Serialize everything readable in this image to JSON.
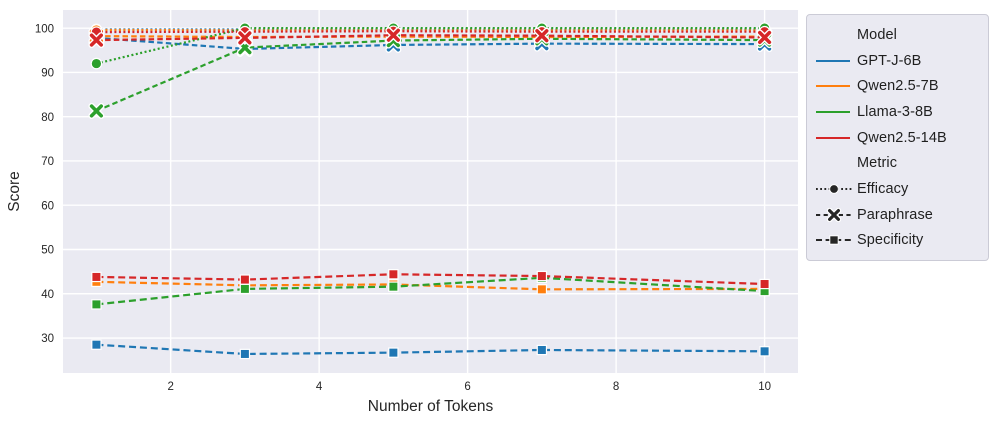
{
  "chart_data": {
    "type": "line",
    "title": "",
    "xlabel": "Number of Tokens",
    "ylabel": "Score",
    "x": [
      1,
      3,
      5,
      7,
      10
    ],
    "xticks": [
      2,
      4,
      6,
      8,
      10
    ],
    "yticks": [
      30,
      40,
      50,
      60,
      70,
      80,
      90,
      100
    ],
    "xlim": [
      0.55,
      10.45
    ],
    "ylim": [
      22.1,
      104.1
    ],
    "grid": true,
    "plot_bg": "#eaeaf2",
    "grid_color": "#ffffff",
    "legend_position": "outside-right",
    "legend": {
      "model_title": "Model",
      "metric_title": "Metric"
    },
    "models": [
      {
        "label": "GPT-J-6B",
        "color": "#1f77b4"
      },
      {
        "label": "Qwen2.5-7B",
        "color": "#ff7f0e"
      },
      {
        "label": "Llama-3-8B",
        "color": "#2ca02c"
      },
      {
        "label": "Qwen2.5-14B",
        "color": "#d62728"
      }
    ],
    "metrics": [
      {
        "label": "Efficacy",
        "marker": "circle",
        "dash": "dotted"
      },
      {
        "label": "Paraphrase",
        "marker": "x",
        "dash": "dashed"
      },
      {
        "label": "Specificity",
        "marker": "square",
        "dash": "dashed-long"
      }
    ],
    "series": [
      {
        "model": "GPT-J-6B",
        "metric": "Efficacy",
        "values": [
          99.7,
          99.7,
          99.7,
          99.7,
          99.7
        ]
      },
      {
        "model": "GPT-J-6B",
        "metric": "Paraphrase",
        "values": [
          97.8,
          95.3,
          96.2,
          96.5,
          96.4
        ]
      },
      {
        "model": "GPT-J-6B",
        "metric": "Specificity",
        "values": [
          28.5,
          26.4,
          26.7,
          27.3,
          27.0
        ]
      },
      {
        "model": "Qwen2.5-7B",
        "metric": "Efficacy",
        "values": [
          99.6,
          99.5,
          99.5,
          99.5,
          99.5
        ]
      },
      {
        "model": "Qwen2.5-7B",
        "metric": "Paraphrase",
        "values": [
          98.2,
          98.0,
          98.1,
          98.0,
          98.1
        ]
      },
      {
        "model": "Qwen2.5-7B",
        "metric": "Specificity",
        "values": [
          42.7,
          41.9,
          42.1,
          41.0,
          41.1
        ]
      },
      {
        "model": "Llama-3-8B",
        "metric": "Efficacy",
        "values": [
          92.0,
          100.0,
          100.0,
          100.0,
          100.0
        ]
      },
      {
        "model": "Llama-3-8B",
        "metric": "Paraphrase",
        "values": [
          81.3,
          95.6,
          97.2,
          97.6,
          97.3
        ]
      },
      {
        "model": "Llama-3-8B",
        "metric": "Specificity",
        "values": [
          37.6,
          41.1,
          41.6,
          43.6,
          40.6
        ]
      },
      {
        "model": "Qwen2.5-14B",
        "metric": "Efficacy",
        "values": [
          99.1,
          99.2,
          99.3,
          99.2,
          99.2
        ]
      },
      {
        "model": "Qwen2.5-14B",
        "metric": "Paraphrase",
        "values": [
          97.3,
          97.8,
          98.4,
          98.3,
          97.9
        ]
      },
      {
        "model": "Qwen2.5-14B",
        "metric": "Specificity",
        "values": [
          43.8,
          43.2,
          44.4,
          44.0,
          42.2
        ]
      }
    ]
  }
}
